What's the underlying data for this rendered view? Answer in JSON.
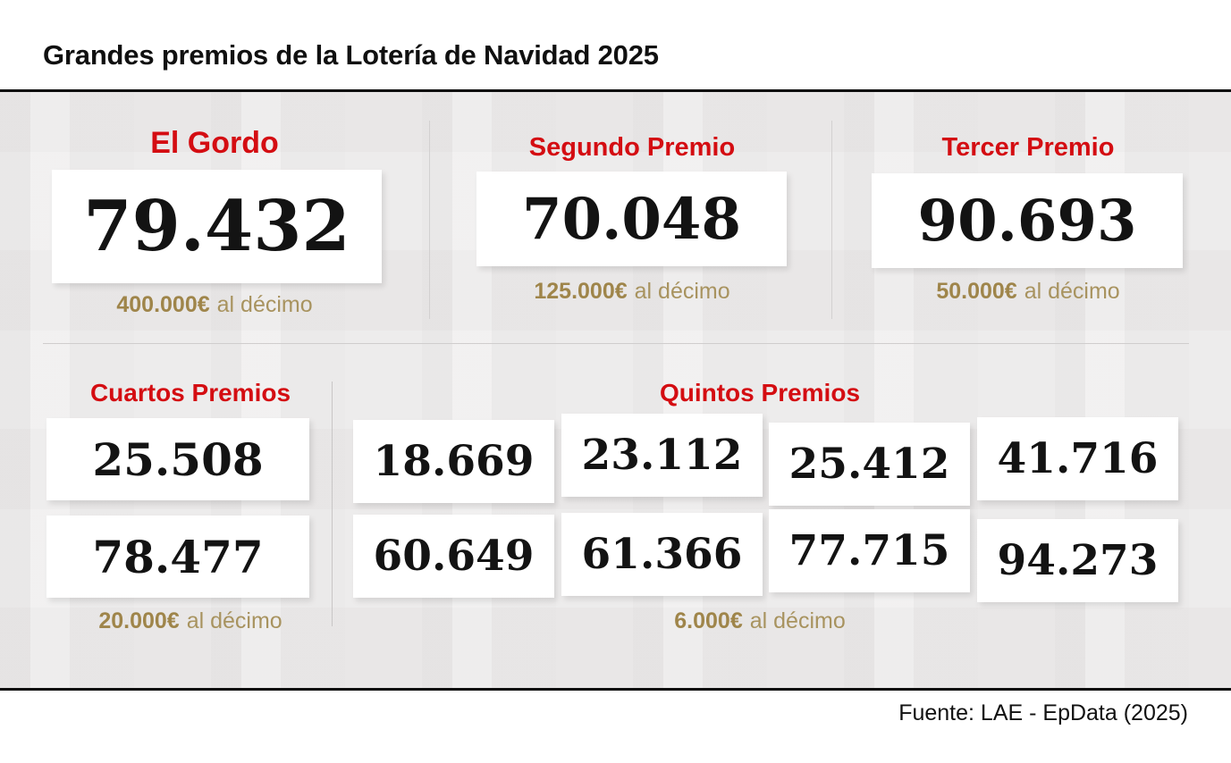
{
  "header": {
    "title": "Grandes premios de la Lotería de Navidad 2025"
  },
  "colors": {
    "accent_red": "#d40d12",
    "gold_bold": "#9f854a",
    "gold_regular": "#a8935f",
    "number_black": "#131313",
    "panel_gray": "#ebe9e9",
    "rule_black": "#0d0d0d"
  },
  "top_prizes": [
    {
      "label": "El Gordo",
      "number": "79.432",
      "prize": "400.000€",
      "per": "al décimo"
    },
    {
      "label": "Segundo Premio",
      "number": "70.048",
      "prize": "125.000€",
      "per": "al décimo"
    },
    {
      "label": "Tercer Premio",
      "number": "90.693",
      "prize": "50.000€",
      "per": "al décimo"
    }
  ],
  "cuartos": {
    "label": "Cuartos Premios",
    "numbers": [
      "25.508",
      "78.477"
    ],
    "prize": "20.000€",
    "per": "al décimo"
  },
  "quintos": {
    "label": "Quintos Premios",
    "numbers": [
      "18.669",
      "23.112",
      "25.412",
      "41.716",
      "60.649",
      "61.366",
      "77.715",
      "94.273"
    ],
    "prize": "6.000€",
    "per": "al décimo"
  },
  "footer": {
    "source": "Fuente: LAE - EpData (2025)"
  },
  "chart_data": {
    "type": "table",
    "title": "Grandes premios de la Lotería de Navidad 2025",
    "categories": [
      "El Gordo",
      "Segundo Premio",
      "Tercer Premio",
      "Cuartos Premios",
      "Quintos Premios"
    ],
    "series": [
      {
        "name": "El Gordo",
        "winning_numbers": [
          "79.432"
        ],
        "prize_per_decimo_eur": 400000
      },
      {
        "name": "Segundo Premio",
        "winning_numbers": [
          "70.048"
        ],
        "prize_per_decimo_eur": 125000
      },
      {
        "name": "Tercer Premio",
        "winning_numbers": [
          "90.693"
        ],
        "prize_per_decimo_eur": 50000
      },
      {
        "name": "Cuartos Premios",
        "winning_numbers": [
          "25.508",
          "78.477"
        ],
        "prize_per_decimo_eur": 20000
      },
      {
        "name": "Quintos Premios",
        "winning_numbers": [
          "18.669",
          "23.112",
          "25.412",
          "41.716",
          "60.649",
          "61.366",
          "77.715",
          "94.273"
        ],
        "prize_per_decimo_eur": 6000
      }
    ],
    "source": "Fuente: LAE - EpData (2025)"
  }
}
